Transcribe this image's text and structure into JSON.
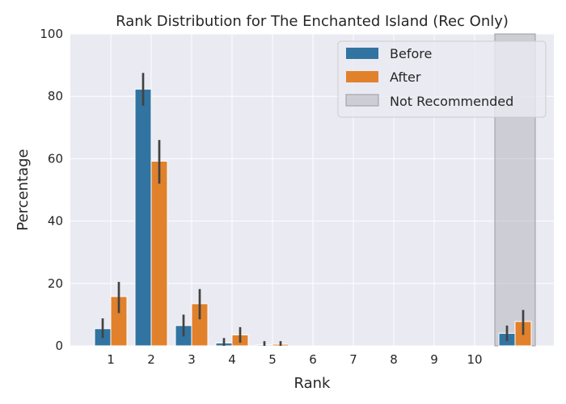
{
  "chart_data": {
    "type": "bar",
    "title": "Rank Distribution for The Enchanted Island (Rec Only)",
    "xlabel": "Rank",
    "ylabel": "Percentage",
    "ylim": [
      0,
      100
    ],
    "yticks": [
      0,
      20,
      40,
      60,
      80,
      100
    ],
    "categories": [
      "1",
      "2",
      "3",
      "4",
      "5",
      "6",
      "7",
      "8",
      "9",
      "10",
      ""
    ],
    "grid": true,
    "legend_position": "top-right",
    "series": [
      {
        "name": "Before",
        "color": "#3274a1",
        "values": [
          5.5,
          82.3,
          6.5,
          0.9,
          0.3,
          0,
          0,
          0,
          0,
          0,
          4.0
        ],
        "error_low": [
          2.5,
          77.0,
          3.0,
          0.0,
          0.0,
          0,
          0,
          0,
          0,
          0,
          1.5
        ],
        "error_high": [
          8.8,
          87.5,
          10.0,
          2.5,
          1.5,
          0,
          0,
          0,
          0,
          0,
          6.5
        ]
      },
      {
        "name": "After",
        "color": "#e1812c",
        "values": [
          15.8,
          59.2,
          13.5,
          3.5,
          0.5,
          0,
          0,
          0,
          0,
          0,
          7.8
        ],
        "error_low": [
          10.5,
          52.0,
          8.5,
          1.0,
          0.0,
          0,
          0,
          0,
          0,
          0,
          3.5
        ],
        "error_high": [
          20.5,
          66.0,
          18.2,
          6.0,
          1.5,
          0,
          0,
          0,
          0,
          0,
          11.5
        ]
      }
    ],
    "highlight": {
      "name": "Not Recommended",
      "category_index": 10,
      "color": "#b0b0b8"
    },
    "colors": {
      "background": "#eaeaf2",
      "grid": "#ffffff",
      "errorbar": "#424242",
      "text": "#262626"
    }
  }
}
